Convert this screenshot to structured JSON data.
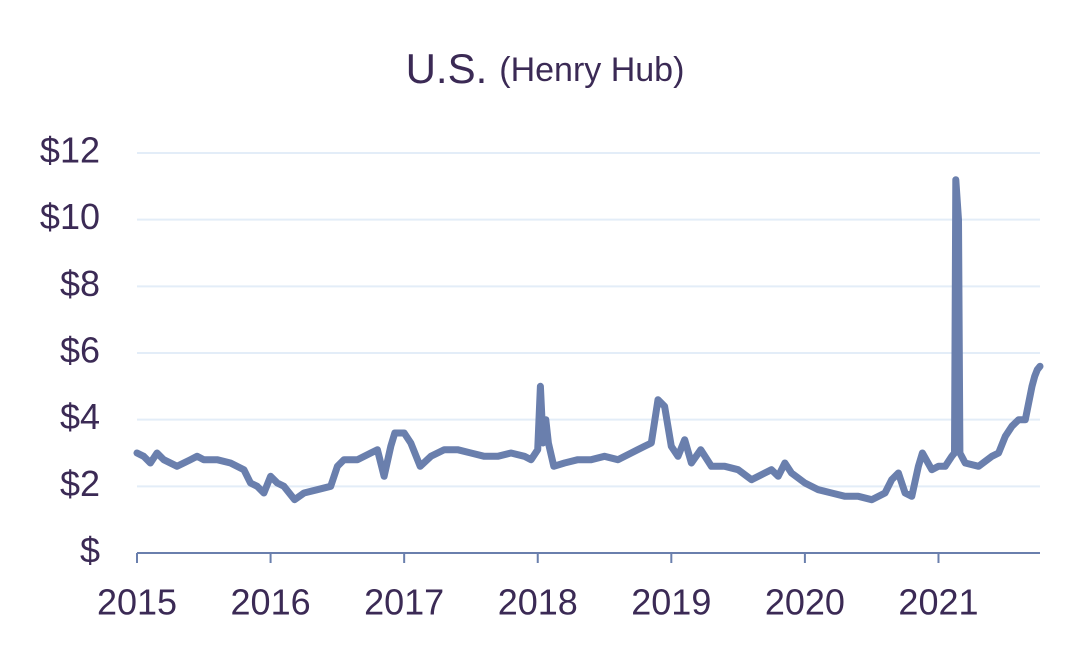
{
  "chart_data": {
    "type": "line",
    "title": "U.S.",
    "subtitle": "(Henry Hub)",
    "x": [
      2015.0,
      2015.05,
      2015.1,
      2015.15,
      2015.2,
      2015.3,
      2015.4,
      2015.45,
      2015.5,
      2015.6,
      2015.7,
      2015.8,
      2015.85,
      2015.9,
      2015.95,
      2016.0,
      2016.05,
      2016.1,
      2016.18,
      2016.25,
      2016.35,
      2016.45,
      2016.5,
      2016.55,
      2016.65,
      2016.75,
      2016.8,
      2016.85,
      2016.9,
      2016.93,
      2017.0,
      2017.05,
      2017.12,
      2017.2,
      2017.3,
      2017.4,
      2017.5,
      2017.6,
      2017.7,
      2017.8,
      2017.9,
      2017.95,
      2018.0,
      2018.02,
      2018.04,
      2018.06,
      2018.08,
      2018.12,
      2018.2,
      2018.3,
      2018.4,
      2018.5,
      2018.6,
      2018.7,
      2018.8,
      2018.85,
      2018.9,
      2018.95,
      2019.0,
      2019.05,
      2019.1,
      2019.15,
      2019.22,
      2019.3,
      2019.4,
      2019.5,
      2019.6,
      2019.7,
      2019.75,
      2019.8,
      2019.85,
      2019.9,
      2020.0,
      2020.1,
      2020.2,
      2020.3,
      2020.4,
      2020.5,
      2020.6,
      2020.65,
      2020.7,
      2020.75,
      2020.8,
      2020.85,
      2020.88,
      2020.95,
      2021.0,
      2021.05,
      2021.1,
      2021.12,
      2021.13,
      2021.15,
      2021.16,
      2021.2,
      2021.3,
      2021.4,
      2021.45,
      2021.5,
      2021.55,
      2021.6,
      2021.65,
      2021.7,
      2021.72,
      2021.74,
      2021.76
    ],
    "series": [
      {
        "name": "Henry Hub",
        "color": "#6a7fad",
        "values": [
          3.0,
          2.9,
          2.7,
          3.0,
          2.8,
          2.6,
          2.8,
          2.9,
          2.8,
          2.8,
          2.7,
          2.5,
          2.1,
          2.0,
          1.8,
          2.3,
          2.1,
          2.0,
          1.6,
          1.8,
          1.9,
          2.0,
          2.6,
          2.8,
          2.8,
          3.0,
          3.1,
          2.3,
          3.2,
          3.6,
          3.6,
          3.3,
          2.6,
          2.9,
          3.1,
          3.1,
          3.0,
          2.9,
          2.9,
          3.0,
          2.9,
          2.8,
          3.1,
          5.0,
          3.3,
          4.0,
          3.3,
          2.6,
          2.7,
          2.8,
          2.8,
          2.9,
          2.8,
          3.0,
          3.2,
          3.3,
          4.6,
          4.4,
          3.2,
          2.9,
          3.4,
          2.7,
          3.1,
          2.6,
          2.6,
          2.5,
          2.2,
          2.4,
          2.5,
          2.3,
          2.7,
          2.4,
          2.1,
          1.9,
          1.8,
          1.7,
          1.7,
          1.6,
          1.8,
          2.2,
          2.4,
          1.8,
          1.7,
          2.6,
          3.0,
          2.5,
          2.6,
          2.6,
          2.9,
          3.0,
          11.2,
          10.0,
          3.0,
          2.7,
          2.6,
          2.9,
          3.0,
          3.5,
          3.8,
          4.0,
          4.0,
          5.0,
          5.3,
          5.5,
          5.6
        ]
      }
    ],
    "xlim": [
      2015,
      2021.76
    ],
    "xticks": [
      2015,
      2016,
      2017,
      2018,
      2019,
      2020,
      2021
    ],
    "ylim": [
      0,
      12
    ],
    "yticks": [
      {
        "value": 0,
        "label": "$"
      },
      {
        "value": 2,
        "label": "$2"
      },
      {
        "value": 4,
        "label": "$4"
      },
      {
        "value": 6,
        "label": "$6"
      },
      {
        "value": 8,
        "label": "$8"
      },
      {
        "value": 10,
        "label": "$10"
      },
      {
        "value": 12,
        "label": "$12"
      }
    ],
    "grid": true
  }
}
